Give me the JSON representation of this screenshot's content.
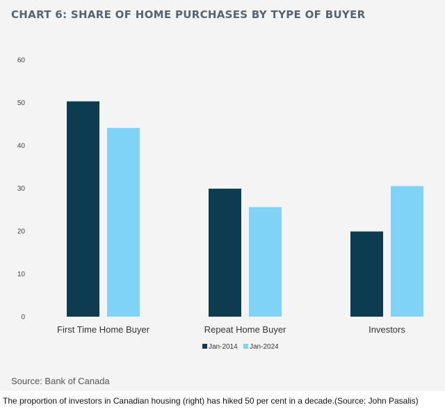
{
  "chart_data": {
    "type": "bar",
    "title": "CHART 6: SHARE OF HOME PURCHASES BY TYPE OF BUYER",
    "categories": [
      "First Time Home Buyer",
      "Repeat Home Buyer",
      "Investors"
    ],
    "series": [
      {
        "name": "Jan-2014",
        "values": [
          50.3,
          29.9,
          19.9
        ],
        "color": "#0d3b4f"
      },
      {
        "name": "Jan-2024",
        "values": [
          44.1,
          25.6,
          30.5
        ],
        "color": "#7fd3f7"
      }
    ],
    "yticks": [
      0,
      10,
      20,
      30,
      40,
      50,
      60
    ],
    "ylim": [
      0,
      60
    ],
    "grid": false,
    "legend_position": "bottom-center",
    "xlabel": "",
    "ylabel": ""
  },
  "source": "Source: Bank of Canada",
  "caption": "The proportion of investors in Canadian housing (right) has hiked 50 per cent in a decade.(Source: John Pasalis)"
}
